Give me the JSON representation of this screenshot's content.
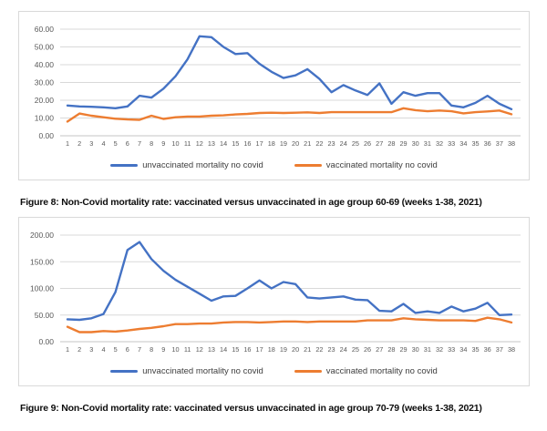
{
  "figures": [
    {
      "caption": "Figure 8: Non-Covid mortality rate: vaccinated versus unvaccinated in age group 60-69 (weeks 1-38, 2021)"
    },
    {
      "caption": "Figure 9: Non-Covid mortality rate: vaccinated versus unvaccinated in age group 70-79 (weeks 1-38, 2021)"
    }
  ],
  "theme": {
    "gridline_color": "#d9d9d9",
    "axis_line_color": "#c6c6c6",
    "axis_text_color": "#595959",
    "chart_border_color": "#d9d9d9"
  },
  "chart_data": [
    {
      "type": "line",
      "title": "",
      "xlabel": "",
      "ylabel": "",
      "ylim": [
        0,
        60
      ],
      "ytick_step": 10,
      "ytick_decimals": 2,
      "grid": true,
      "legend_position": "bottom",
      "x": [
        1,
        2,
        3,
        4,
        5,
        6,
        7,
        8,
        9,
        10,
        11,
        12,
        13,
        14,
        15,
        16,
        17,
        18,
        19,
        20,
        21,
        22,
        23,
        24,
        25,
        26,
        27,
        28,
        29,
        30,
        31,
        32,
        33,
        34,
        35,
        36,
        37,
        38
      ],
      "series": [
        {
          "name": "unvaccinated mortality no covid",
          "color": "#4472C4",
          "values": [
            17,
            16.5,
            16.3,
            16,
            15.5,
            16.5,
            22.5,
            21.5,
            26.5,
            33.5,
            43,
            56,
            55.5,
            50,
            46,
            46.5,
            40.5,
            36,
            32.5,
            34,
            37.5,
            32,
            24.5,
            28.5,
            25.5,
            23,
            29.5,
            18,
            24.5,
            22.5,
            24,
            24,
            17,
            16,
            18.5,
            22.5,
            18,
            15
          ]
        },
        {
          "name": "vaccinated mortality no covid",
          "color": "#ED7D31",
          "values": [
            8,
            12.5,
            11.3,
            10.4,
            9.6,
            9.2,
            9,
            11.3,
            9.5,
            10.4,
            10.8,
            10.8,
            11.3,
            11.5,
            12,
            12.3,
            12.8,
            13,
            12.8,
            13,
            13.2,
            12.8,
            13.3,
            13.3,
            13.3,
            13.3,
            13.3,
            13.3,
            15.5,
            14.4,
            13.8,
            14.2,
            13.8,
            12.6,
            13.3,
            13.7,
            14.2,
            12.1
          ]
        }
      ]
    },
    {
      "type": "line",
      "title": "",
      "xlabel": "",
      "ylabel": "",
      "ylim": [
        0,
        200
      ],
      "ytick_step": 50,
      "ytick_decimals": 2,
      "grid": true,
      "legend_position": "bottom",
      "x": [
        1,
        2,
        3,
        4,
        5,
        6,
        7,
        8,
        9,
        10,
        11,
        12,
        13,
        14,
        15,
        16,
        17,
        18,
        19,
        20,
        21,
        22,
        23,
        24,
        25,
        26,
        27,
        28,
        29,
        30,
        31,
        32,
        33,
        34,
        35,
        36,
        37,
        38
      ],
      "series": [
        {
          "name": "unvaccinated mortality no covid",
          "color": "#4472C4",
          "values": [
            42,
            41,
            44,
            52,
            93,
            172,
            187,
            155,
            133,
            116,
            103,
            90,
            77,
            85,
            86,
            100,
            115,
            100,
            112,
            108,
            83,
            81,
            83,
            85,
            79,
            78,
            58,
            57,
            71,
            54,
            57,
            54,
            66,
            57,
            62,
            73,
            50,
            51
          ]
        },
        {
          "name": "vaccinated mortality no covid",
          "color": "#ED7D31",
          "values": [
            28,
            18,
            18,
            20,
            19,
            21,
            24,
            26,
            29,
            33,
            33,
            34,
            34,
            36,
            37,
            37,
            36,
            37,
            38,
            38,
            37,
            38,
            38,
            38,
            38,
            40,
            40,
            40,
            44,
            42,
            41,
            40,
            40,
            40,
            39,
            45,
            42,
            36
          ]
        }
      ]
    }
  ]
}
